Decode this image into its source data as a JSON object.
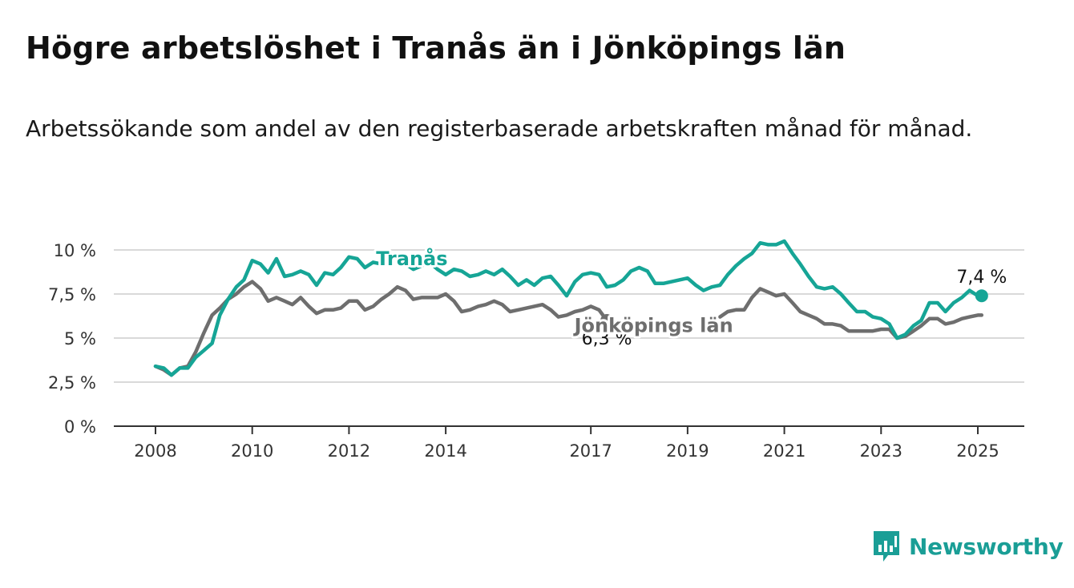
{
  "title": "Högre arbetslöshet i Tranås än i Jönköpings län",
  "subtitle": "Arbetssökande som andel av den registerbaserade arbetskraften månad för månad.",
  "brand": "Newsworthy",
  "colors": {
    "Tranås": "#16a596",
    "Jönköpings län": "#6e6e6e",
    "grid": "#d9d9d9",
    "axis": "#333333"
  },
  "chart_data": {
    "type": "line",
    "title": "Högre arbetslöshet i Tranås än i Jönköpings län",
    "xlabel": "",
    "ylabel": "",
    "ylim": [
      0,
      10
    ],
    "xlim": [
      2008,
      2025
    ],
    "yticks": [
      0,
      2.5,
      5,
      7.5,
      10
    ],
    "ytick_labels": [
      "0 %",
      "2,5 %",
      "5 %",
      "7,5 %",
      "10 %"
    ],
    "xticks": [
      2008,
      2010,
      2012,
      2014,
      2017,
      2019,
      2021,
      2023,
      2025
    ],
    "xtick_labels": [
      "2008",
      "2010",
      "2012",
      "2014",
      "2017",
      "2019",
      "2021",
      "2023",
      "2025"
    ],
    "grid": true,
    "legend": "inline labels",
    "series": [
      {
        "name": "Tranås",
        "end_label": "7,4 %",
        "points": [
          [
            2008.0,
            3.4
          ],
          [
            2008.17,
            3.3
          ],
          [
            2008.33,
            2.9
          ],
          [
            2008.5,
            3.3
          ],
          [
            2008.67,
            3.3
          ],
          [
            2008.83,
            3.9
          ],
          [
            2009.0,
            4.3
          ],
          [
            2009.17,
            4.7
          ],
          [
            2009.33,
            6.3
          ],
          [
            2009.5,
            7.2
          ],
          [
            2009.67,
            7.9
          ],
          [
            2009.83,
            8.3
          ],
          [
            2010.0,
            9.4
          ],
          [
            2010.17,
            9.2
          ],
          [
            2010.33,
            8.7
          ],
          [
            2010.5,
            9.5
          ],
          [
            2010.67,
            8.5
          ],
          [
            2010.83,
            8.6
          ],
          [
            2011.0,
            8.8
          ],
          [
            2011.17,
            8.6
          ],
          [
            2011.33,
            8.0
          ],
          [
            2011.5,
            8.7
          ],
          [
            2011.67,
            8.6
          ],
          [
            2011.83,
            9.0
          ],
          [
            2012.0,
            9.6
          ],
          [
            2012.17,
            9.5
          ],
          [
            2012.33,
            9.0
          ],
          [
            2012.5,
            9.3
          ],
          [
            2012.67,
            9.2
          ],
          [
            2012.83,
            9.7
          ],
          [
            2013.0,
            9.6
          ],
          [
            2013.17,
            9.2
          ],
          [
            2013.33,
            8.9
          ],
          [
            2013.5,
            9.1
          ],
          [
            2013.67,
            9.3
          ],
          [
            2013.83,
            8.9
          ],
          [
            2014.0,
            8.6
          ],
          [
            2014.17,
            8.9
          ],
          [
            2014.33,
            8.8
          ],
          [
            2014.5,
            8.5
          ],
          [
            2014.67,
            8.6
          ],
          [
            2014.83,
            8.8
          ],
          [
            2015.0,
            8.6
          ],
          [
            2015.17,
            8.9
          ],
          [
            2015.33,
            8.5
          ],
          [
            2015.5,
            8.0
          ],
          [
            2015.67,
            8.3
          ],
          [
            2015.83,
            8.0
          ],
          [
            2016.0,
            8.4
          ],
          [
            2016.17,
            8.5
          ],
          [
            2016.33,
            8.0
          ],
          [
            2016.5,
            7.4
          ],
          [
            2016.67,
            8.2
          ],
          [
            2016.83,
            8.6
          ],
          [
            2017.0,
            8.7
          ],
          [
            2017.17,
            8.6
          ],
          [
            2017.33,
            7.9
          ],
          [
            2017.5,
            8.0
          ],
          [
            2017.67,
            8.3
          ],
          [
            2017.83,
            8.8
          ],
          [
            2018.0,
            9.0
          ],
          [
            2018.17,
            8.8
          ],
          [
            2018.33,
            8.1
          ],
          [
            2018.5,
            8.1
          ],
          [
            2018.67,
            8.2
          ],
          [
            2018.83,
            8.3
          ],
          [
            2019.0,
            8.4
          ],
          [
            2019.17,
            8.0
          ],
          [
            2019.33,
            7.7
          ],
          [
            2019.5,
            7.9
          ],
          [
            2019.67,
            8.0
          ],
          [
            2019.83,
            8.6
          ],
          [
            2020.0,
            9.1
          ],
          [
            2020.17,
            9.5
          ],
          [
            2020.33,
            9.8
          ],
          [
            2020.5,
            10.4
          ],
          [
            2020.67,
            10.3
          ],
          [
            2020.83,
            10.3
          ],
          [
            2021.0,
            10.5
          ],
          [
            2021.17,
            9.8
          ],
          [
            2021.33,
            9.2
          ],
          [
            2021.5,
            8.5
          ],
          [
            2021.67,
            7.9
          ],
          [
            2021.83,
            7.8
          ],
          [
            2022.0,
            7.9
          ],
          [
            2022.17,
            7.5
          ],
          [
            2022.33,
            7.0
          ],
          [
            2022.5,
            6.5
          ],
          [
            2022.67,
            6.5
          ],
          [
            2022.83,
            6.2
          ],
          [
            2023.0,
            6.1
          ],
          [
            2023.17,
            5.8
          ],
          [
            2023.33,
            5.0
          ],
          [
            2023.5,
            5.2
          ],
          [
            2023.67,
            5.7
          ],
          [
            2023.83,
            6.0
          ],
          [
            2024.0,
            7.0
          ],
          [
            2024.17,
            7.0
          ],
          [
            2024.33,
            6.5
          ],
          [
            2024.5,
            7.0
          ],
          [
            2024.67,
            7.3
          ],
          [
            2024.83,
            7.7
          ],
          [
            2025.0,
            7.4
          ],
          [
            2025.08,
            7.4
          ]
        ]
      },
      {
        "name": "Jönköpings län",
        "end_label": "6,3 %",
        "points": [
          [
            2008.0,
            3.4
          ],
          [
            2008.17,
            3.2
          ],
          [
            2008.33,
            2.9
          ],
          [
            2008.5,
            3.3
          ],
          [
            2008.67,
            3.4
          ],
          [
            2008.83,
            4.2
          ],
          [
            2009.0,
            5.3
          ],
          [
            2009.17,
            6.3
          ],
          [
            2009.33,
            6.7
          ],
          [
            2009.5,
            7.2
          ],
          [
            2009.67,
            7.5
          ],
          [
            2009.83,
            7.9
          ],
          [
            2010.0,
            8.2
          ],
          [
            2010.17,
            7.8
          ],
          [
            2010.33,
            7.1
          ],
          [
            2010.5,
            7.3
          ],
          [
            2010.67,
            7.1
          ],
          [
            2010.83,
            6.9
          ],
          [
            2011.0,
            7.3
          ],
          [
            2011.17,
            6.8
          ],
          [
            2011.33,
            6.4
          ],
          [
            2011.5,
            6.6
          ],
          [
            2011.67,
            6.6
          ],
          [
            2011.83,
            6.7
          ],
          [
            2012.0,
            7.1
          ],
          [
            2012.17,
            7.1
          ],
          [
            2012.33,
            6.6
          ],
          [
            2012.5,
            6.8
          ],
          [
            2012.67,
            7.2
          ],
          [
            2012.83,
            7.5
          ],
          [
            2013.0,
            7.9
          ],
          [
            2013.17,
            7.7
          ],
          [
            2013.33,
            7.2
          ],
          [
            2013.5,
            7.3
          ],
          [
            2013.67,
            7.3
          ],
          [
            2013.83,
            7.3
          ],
          [
            2014.0,
            7.5
          ],
          [
            2014.17,
            7.1
          ],
          [
            2014.33,
            6.5
          ],
          [
            2014.5,
            6.6
          ],
          [
            2014.67,
            6.8
          ],
          [
            2014.83,
            6.9
          ],
          [
            2015.0,
            7.1
          ],
          [
            2015.17,
            6.9
          ],
          [
            2015.33,
            6.5
          ],
          [
            2015.5,
            6.6
          ],
          [
            2015.67,
            6.7
          ],
          [
            2015.83,
            6.8
          ],
          [
            2016.0,
            6.9
          ],
          [
            2016.17,
            6.6
          ],
          [
            2016.33,
            6.2
          ],
          [
            2016.5,
            6.3
          ],
          [
            2016.67,
            6.5
          ],
          [
            2016.83,
            6.6
          ],
          [
            2017.0,
            6.8
          ],
          [
            2017.17,
            6.6
          ],
          [
            2017.33,
            6.0
          ]
        ]
      },
      {
        "name": "Jönköpings län",
        "points": [
          [
            2019.67,
            6.2
          ],
          [
            2019.83,
            6.5
          ],
          [
            2020.0,
            6.6
          ],
          [
            2020.17,
            6.6
          ],
          [
            2020.33,
            7.3
          ],
          [
            2020.5,
            7.8
          ],
          [
            2020.67,
            7.6
          ],
          [
            2020.83,
            7.4
          ],
          [
            2021.0,
            7.5
          ],
          [
            2021.17,
            7.0
          ],
          [
            2021.33,
            6.5
          ],
          [
            2021.5,
            6.3
          ],
          [
            2021.67,
            6.1
          ],
          [
            2021.83,
            5.8
          ],
          [
            2022.0,
            5.8
          ],
          [
            2022.17,
            5.7
          ],
          [
            2022.33,
            5.4
          ],
          [
            2022.5,
            5.4
          ],
          [
            2022.67,
            5.4
          ],
          [
            2022.83,
            5.4
          ],
          [
            2023.0,
            5.5
          ],
          [
            2023.17,
            5.5
          ],
          [
            2023.33,
            5.0
          ],
          [
            2023.5,
            5.1
          ],
          [
            2023.67,
            5.4
          ],
          [
            2023.83,
            5.7
          ],
          [
            2024.0,
            6.1
          ],
          [
            2024.17,
            6.1
          ],
          [
            2024.33,
            5.8
          ],
          [
            2024.5,
            5.9
          ],
          [
            2024.67,
            6.1
          ],
          [
            2024.83,
            6.2
          ],
          [
            2025.0,
            6.3
          ],
          [
            2025.08,
            6.3
          ]
        ]
      }
    ],
    "annotations": [
      {
        "text": "Tranås",
        "series": "Tranås",
        "x": 2013.3,
        "y": 9.5
      },
      {
        "text": "Jönköpings län",
        "series": "Jönköpings län",
        "x": 2018.3,
        "y": 5.7
      }
    ]
  }
}
